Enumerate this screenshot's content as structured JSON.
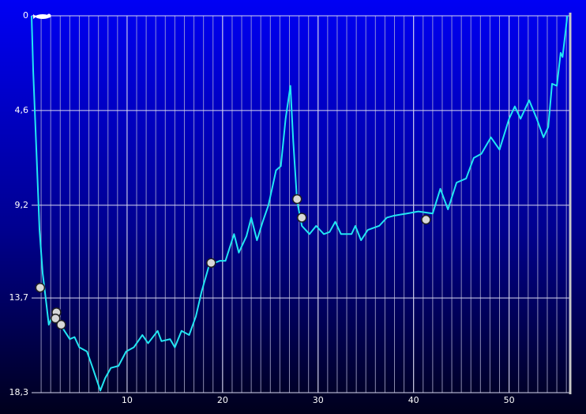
{
  "chart_data": {
    "type": "line",
    "xlim": [
      0,
      56.4
    ],
    "ylim": [
      18.3,
      0
    ],
    "xticks": [
      10,
      20,
      30,
      40,
      50
    ],
    "yticks": [
      0,
      {
        "value": 4.6,
        "label": "4,6"
      },
      {
        "value": 9.2,
        "label": "9,2"
      },
      {
        "value": 13.7,
        "label": "13,7"
      },
      {
        "value": 18.3,
        "label": "18,3"
      }
    ],
    "grid": true,
    "series": [
      {
        "color": "#22e6f2",
        "x": [
          0,
          0.17,
          0.5,
          0.83,
          1.16,
          1.5,
          1.8,
          2.15,
          2.6,
          3.3,
          4.0,
          4.5,
          5.0,
          5.8,
          6.4,
          7.2,
          7.7,
          8.3,
          9.1,
          9.9,
          10.7,
          11.6,
          12.2,
          13.2,
          13.6,
          14.5,
          15.0,
          15.7,
          16.5,
          17.2,
          17.8,
          18.6,
          19.7,
          20.3,
          21.2,
          21.7,
          22.5,
          23.0,
          23.6,
          24.2,
          24.8,
          25.6,
          26.1,
          26.6,
          27.1,
          27.4,
          27.8,
          28.3,
          29.1,
          29.8,
          30.6,
          31.2,
          31.8,
          32.4,
          33.5,
          33.9,
          34.5,
          35.2,
          36.4,
          37.2,
          38.0,
          39.3,
          40.5,
          42.0,
          42.8,
          43.6,
          44.5,
          45.5,
          46.3,
          47.1,
          48.1,
          49.0,
          50.0,
          50.6,
          51.2,
          52.1,
          52.9,
          53.6,
          54.1,
          54.5,
          55.0,
          55.4,
          55.6,
          55.9,
          56.1
        ],
        "values": [
          0,
          2.7,
          6.5,
          10.4,
          12.5,
          13.8,
          15.0,
          14.6,
          14.8,
          15.2,
          15.7,
          15.6,
          16.1,
          16.3,
          17.1,
          18.2,
          17.6,
          17.1,
          17.0,
          16.3,
          16.1,
          15.5,
          15.9,
          15.3,
          15.8,
          15.7,
          16.1,
          15.3,
          15.5,
          14.6,
          13.4,
          12.1,
          11.9,
          11.9,
          10.6,
          11.5,
          10.7,
          9.8,
          10.9,
          10.0,
          9.2,
          7.5,
          7.3,
          5.0,
          3.4,
          6.1,
          9.0,
          10.2,
          10.6,
          10.2,
          10.6,
          10.5,
          10.0,
          10.6,
          10.6,
          10.2,
          10.9,
          10.4,
          10.2,
          9.8,
          9.7,
          9.6,
          9.5,
          9.6,
          8.4,
          9.4,
          8.1,
          7.9,
          6.9,
          6.7,
          5.9,
          6.5,
          5.0,
          4.4,
          5.0,
          4.1,
          5.0,
          5.9,
          5.4,
          3.3,
          3.4,
          1.8,
          2.0,
          0.8,
          0
        ]
      }
    ],
    "events": {
      "type": "scatter",
      "x": [
        0.9,
        2.6,
        2.5,
        3.1,
        18.8,
        27.8,
        28.3,
        41.3
      ],
      "values": [
        13.2,
        14.4,
        14.7,
        15.0,
        12.0,
        8.9,
        9.8,
        9.9
      ]
    }
  }
}
